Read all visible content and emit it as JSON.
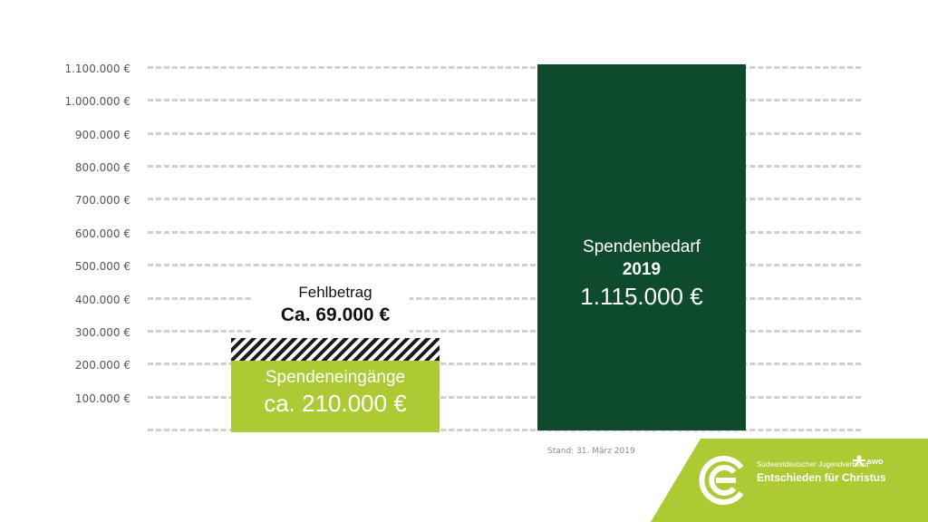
{
  "chart_data": {
    "type": "bar",
    "ylim": [
      0,
      1100000
    ],
    "yticks": [
      {
        "value": 100000,
        "label": "100.000 €"
      },
      {
        "value": 200000,
        "label": "200.000 €"
      },
      {
        "value": 300000,
        "label": "300.000 €"
      },
      {
        "value": 400000,
        "label": "400.000 €"
      },
      {
        "value": 500000,
        "label": "500.000 €"
      },
      {
        "value": 600000,
        "label": "600.000 €"
      },
      {
        "value": 700000,
        "label": "700.000 €"
      },
      {
        "value": 800000,
        "label": "800.000 €"
      },
      {
        "value": 900000,
        "label": "900.000 €"
      },
      {
        "value": 1000000,
        "label": "1.000.000 €"
      },
      {
        "value": 1100000,
        "label": "1.100.000 €"
      }
    ],
    "gridlines": true,
    "bars": [
      {
        "label": "Spendeneingänge",
        "value_label": "ca. 210.000 €",
        "value": 210000,
        "color": "#adc934",
        "shortfall": {
          "label": "Fehlbetrag",
          "value_label": "Ca. 69.000 €",
          "value": 69000
        }
      },
      {
        "label": "Spendenbedarf",
        "sublabel": "2019",
        "value_label": "1.115.000 €",
        "value": 1115000,
        "color": "#0e4b2c"
      }
    ],
    "footnote": "Stand:  31. März 2019"
  },
  "brand": {
    "org_name": "Südwestdeutscher Jugendverband",
    "short": "swo",
    "slogan": "Entschieden für Christus",
    "color": "#adc934"
  }
}
